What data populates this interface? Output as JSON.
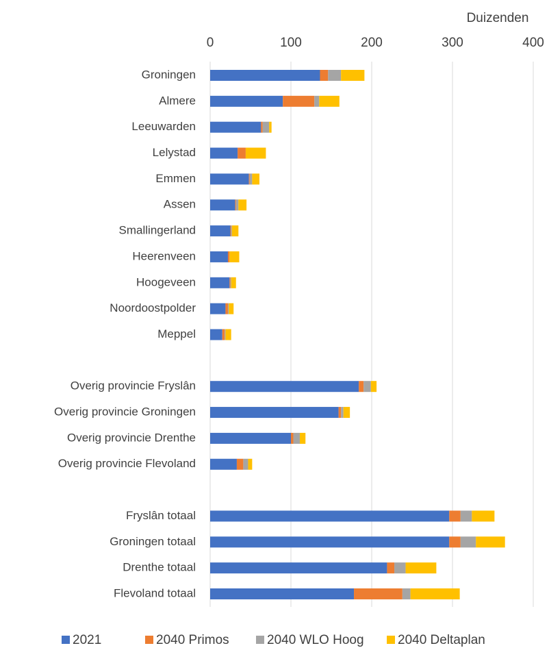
{
  "chart_data": {
    "type": "stacked_barh",
    "axis_label": "Duizenden",
    "categories": [
      "Groningen",
      "Almere",
      "Leeuwarden",
      "Lelystad",
      "Emmen",
      "Assen",
      "Smallingerland",
      "Heerenveen",
      "Hoogeveen",
      "Noordoostpolder",
      "Meppel",
      null,
      "Overig provincie Fryslân",
      "Overig provincie Groningen",
      "Overig provincie Drenthe",
      "Overig provincie Flevoland",
      null,
      "Fryslân totaal",
      "Groningen totaal",
      "Drenthe totaal",
      "Flevoland totaal"
    ],
    "series": [
      {
        "name": "2021",
        "color": "#4472c4",
        "values": [
          136,
          90,
          63,
          34,
          48,
          31,
          25,
          22,
          24,
          19,
          15,
          null,
          184,
          159,
          100,
          33,
          null,
          296,
          296,
          219,
          178
        ]
      },
      {
        "name": "2040 Primos",
        "color": "#ed7d31",
        "values": [
          10,
          39,
          2,
          10,
          1,
          1,
          1,
          2,
          1,
          3,
          3,
          null,
          6,
          3,
          3,
          8,
          null,
          14,
          14,
          9,
          60
        ]
      },
      {
        "name": "2040 WLO Hoog",
        "color": "#a5a5a5",
        "values": [
          16,
          6,
          8,
          0,
          3,
          3,
          1,
          0,
          1,
          1,
          1,
          null,
          9,
          3,
          8,
          6,
          null,
          14,
          19,
          14,
          10
        ]
      },
      {
        "name": "2040 Deltaplan",
        "color": "#ffc000",
        "values": [
          29,
          25,
          3,
          25,
          9,
          10,
          8,
          12,
          6,
          6,
          7,
          null,
          7,
          8,
          7,
          5,
          null,
          28,
          36,
          38,
          61
        ]
      }
    ],
    "xlim": [
      0,
      400
    ],
    "xticks": [
      0,
      100,
      200,
      300,
      400
    ],
    "grid": true,
    "legend": "bottom"
  }
}
